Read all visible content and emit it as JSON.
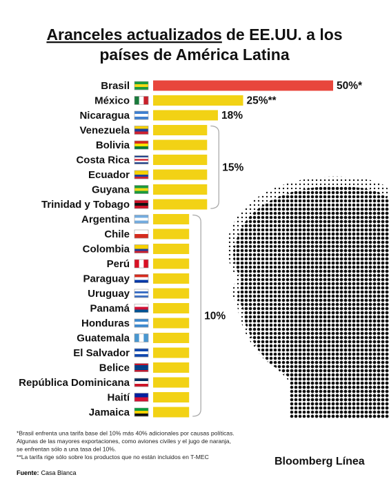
{
  "chart_data": {
    "type": "bar",
    "orientation": "horizontal",
    "title": {
      "underlined": "Aranceles actualizados",
      "rest_line1": "de EE.UU. a los",
      "line2": "países de América Latina"
    },
    "categories": [
      "Brasil",
      "México",
      "Nicaragua",
      "Venezuela",
      "Bolivia",
      "Costa Rica",
      "Ecuador",
      "Guyana",
      "Trinidad y Tobago",
      "Argentina",
      "Chile",
      "Colombia",
      "Perú",
      "Paraguay",
      "Uruguay",
      "Panamá",
      "Honduras",
      "Guatemala",
      "El Salvador",
      "Belice",
      "República Dominicana",
      "Haití",
      "Jamaica"
    ],
    "values": [
      50,
      25,
      18,
      15,
      15,
      15,
      15,
      15,
      15,
      10,
      10,
      10,
      10,
      10,
      10,
      10,
      10,
      10,
      10,
      10,
      10,
      10,
      10
    ],
    "value_labels": [
      "50%*",
      "25%**",
      "18%",
      null,
      null,
      null,
      null,
      null,
      null,
      null,
      null,
      null,
      null,
      null,
      null,
      null,
      null,
      null,
      null,
      null,
      null,
      null,
      null
    ],
    "colors": [
      "#e8463c",
      "#f2d215",
      "#f2d215",
      "#f2d215",
      "#f2d215",
      "#f2d215",
      "#f2d215",
      "#f2d215",
      "#f2d215",
      "#f2d215",
      "#f2d215",
      "#f2d215",
      "#f2d215",
      "#f2d215",
      "#f2d215",
      "#f2d215",
      "#f2d215",
      "#f2d215",
      "#f2d215",
      "#f2d215",
      "#f2d215",
      "#f2d215",
      "#f2d215"
    ],
    "group_labels": [
      {
        "label": "15%",
        "from": 3,
        "to": 8
      },
      {
        "label": "10%",
        "from": 9,
        "to": 22
      }
    ],
    "footnotes": [
      "*Brasil enfrenta una tarifa base del 10% más 40% adicionales por causas políticas.",
      "Algunas de las mayores exportaciones, como aviones civiles y el jugo de naranja,",
      "se enfrentan sólo a una tasa del 10%.",
      "**La tarifa rige sólo sobre los productos que no están incluidos en T-MEC"
    ],
    "source_label": "Fuente:",
    "source": "Casa Blanca",
    "brand": "Bloomberg Línea"
  }
}
